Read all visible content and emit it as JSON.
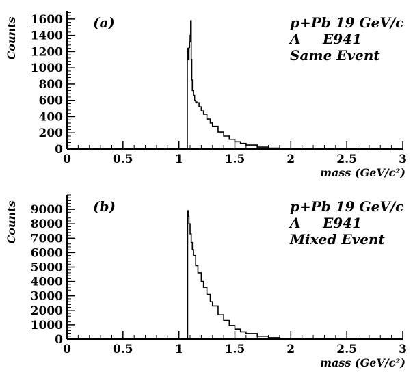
{
  "chart_data": [
    {
      "type": "line",
      "panel_label": "(a)",
      "annotations": [
        "p+Pb 19 GeV/c",
        "Λ",
        "E941",
        "Same Event"
      ],
      "xlabel": "mass (GeV/c²)",
      "ylabel": "Counts",
      "xlim": [
        0,
        3
      ],
      "ylim": [
        0,
        1700
      ],
      "xticks": [
        "0",
        "0.5",
        "1",
        "1.5",
        "2",
        "2.5",
        "3"
      ],
      "yticks": [
        "0",
        "200",
        "400",
        "600",
        "800",
        "1000",
        "1200",
        "1400",
        "1600"
      ],
      "grid": false,
      "series": [
        {
          "x": [
            1.07,
            1.075,
            1.08,
            1.085,
            1.09,
            1.095,
            1.1,
            1.105,
            1.11,
            1.115,
            1.12,
            1.13,
            1.14,
            1.15,
            1.16,
            1.18,
            1.2,
            1.22,
            1.25,
            1.28,
            1.3,
            1.35,
            1.4,
            1.45,
            1.5,
            1.55,
            1.6,
            1.7,
            1.8,
            1.9,
            2.0,
            2.1,
            2.5,
            3.0
          ],
          "y": [
            0,
            1200,
            1240,
            1100,
            1250,
            1320,
            1400,
            1580,
            1100,
            850,
            720,
            660,
            600,
            580,
            570,
            520,
            470,
            430,
            370,
            320,
            280,
            210,
            160,
            120,
            90,
            70,
            50,
            25,
            12,
            5,
            2,
            0,
            0,
            0
          ]
        }
      ]
    },
    {
      "type": "line",
      "panel_label": "(b)",
      "annotations": [
        "p+Pb 19 GeV/c",
        "Λ",
        "E941",
        "Mixed Event"
      ],
      "xlabel": "mass (GeV/c²)",
      "ylabel": "Counts",
      "xlim": [
        0,
        3
      ],
      "ylim": [
        0,
        10000
      ],
      "xticks": [
        "0",
        "0.5",
        "1",
        "1.5",
        "2",
        "2.5",
        "3"
      ],
      "yticks": [
        "0",
        "1000",
        "2000",
        "3000",
        "4000",
        "5000",
        "6000",
        "7000",
        "8000",
        "9000"
      ],
      "grid": false,
      "series": [
        {
          "x": [
            1.07,
            1.078,
            1.085,
            1.09,
            1.1,
            1.11,
            1.12,
            1.13,
            1.15,
            1.17,
            1.2,
            1.22,
            1.25,
            1.28,
            1.3,
            1.35,
            1.4,
            1.45,
            1.5,
            1.55,
            1.6,
            1.7,
            1.8,
            1.9,
            2.0,
            2.2,
            2.5,
            3.0
          ],
          "y": [
            0,
            8900,
            8500,
            8000,
            7300,
            6700,
            6200,
            5800,
            5100,
            4600,
            4000,
            3600,
            3100,
            2600,
            2300,
            1700,
            1300,
            950,
            700,
            500,
            380,
            200,
            100,
            50,
            25,
            5,
            0,
            0
          ]
        }
      ]
    }
  ]
}
